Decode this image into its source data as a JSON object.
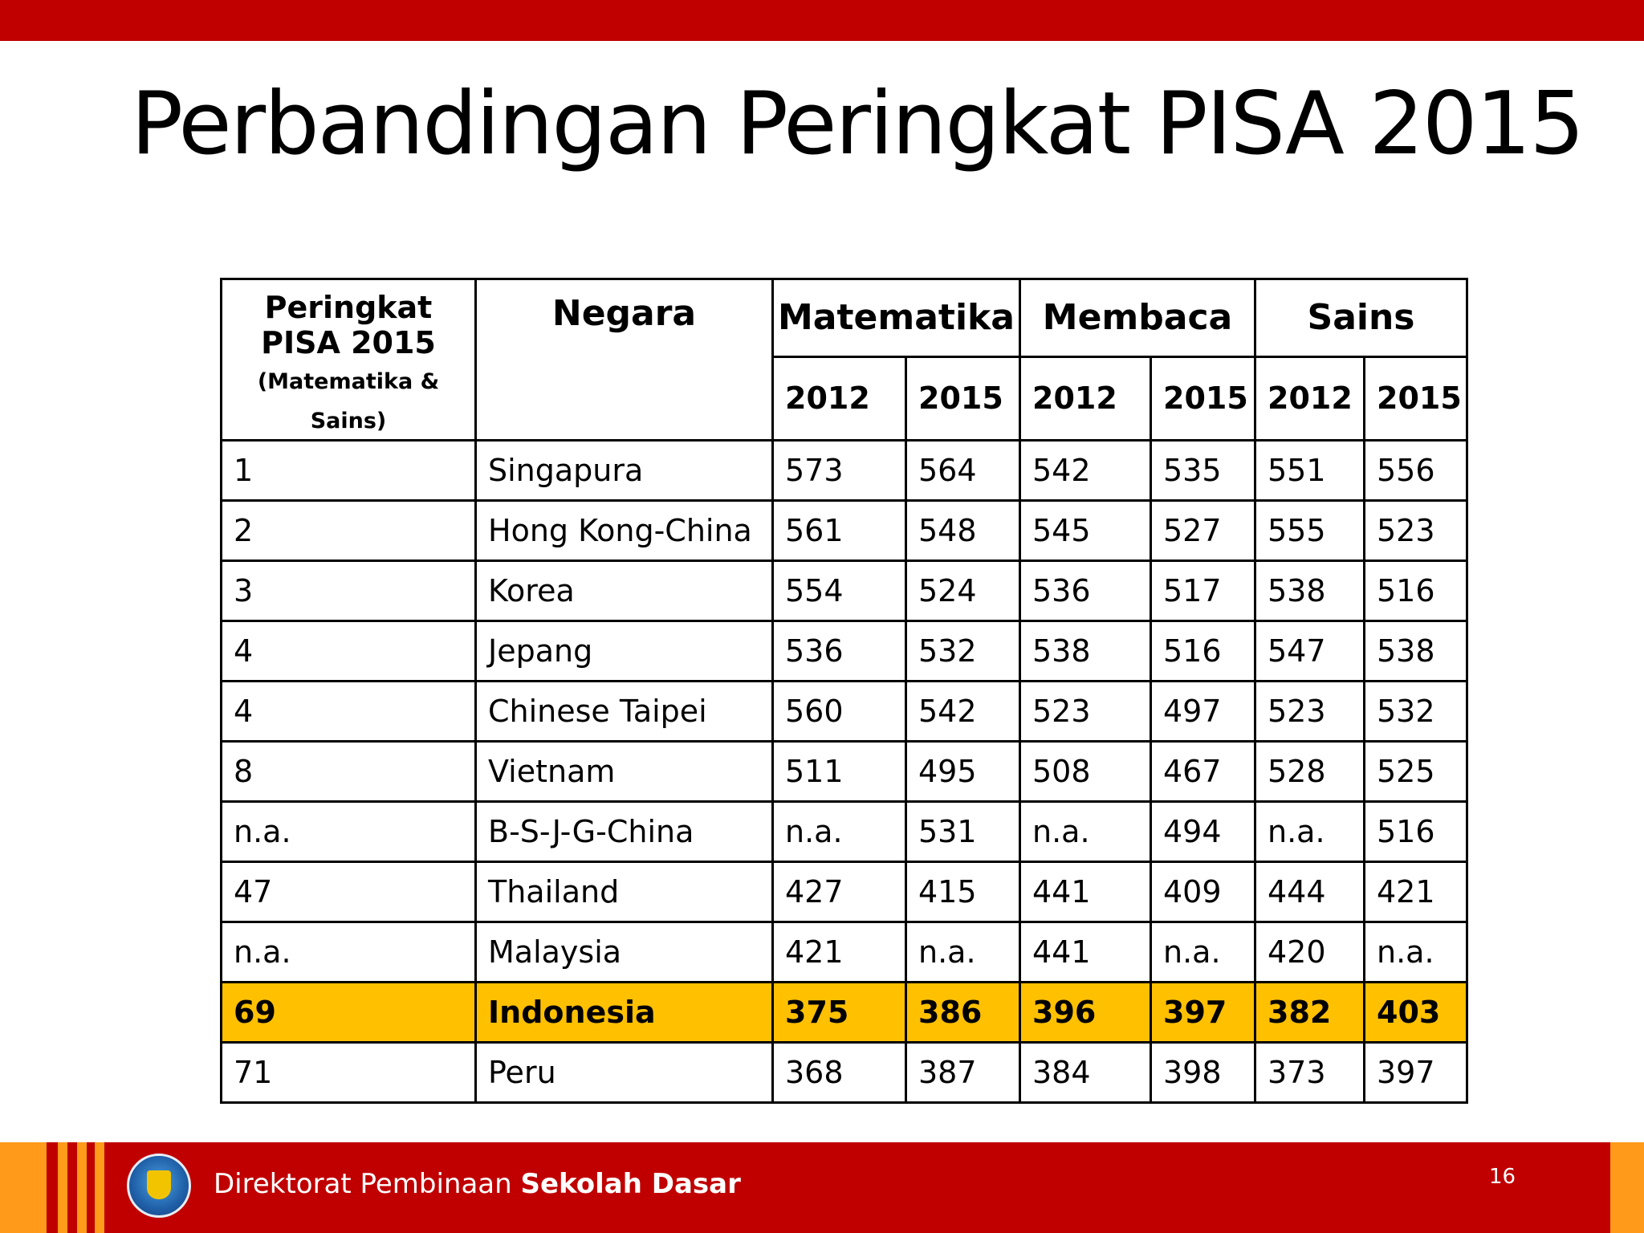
{
  "slide": {
    "title": "Perbandingan Peringkat PISA 2015",
    "page_number": "16"
  },
  "table": {
    "header": {
      "rank_main": "Peringkat PISA 2015",
      "rank_note": "(Matematika & Sains)",
      "country": "Negara",
      "subjects": [
        "Matematika",
        "Membaca",
        "Sains"
      ],
      "years": [
        "2012",
        "2015"
      ]
    },
    "rows": [
      [
        "1",
        "Singapura",
        "573",
        "564",
        "542",
        "535",
        "551",
        "556"
      ],
      [
        "2",
        "Hong Kong-China",
        "561",
        "548",
        "545",
        "527",
        "555",
        "523"
      ],
      [
        "3",
        "Korea",
        "554",
        "524",
        "536",
        "517",
        "538",
        "516"
      ],
      [
        "4",
        "Jepang",
        "536",
        "532",
        "538",
        "516",
        "547",
        "538"
      ],
      [
        "4",
        "Chinese Taipei",
        "560",
        "542",
        "523",
        "497",
        "523",
        "532"
      ],
      [
        "8",
        "Vietnam",
        "511",
        "495",
        "508",
        "467",
        "528",
        "525"
      ],
      [
        "n.a.",
        "B-S-J-G-China",
        "n.a.",
        "531",
        "n.a.",
        "494",
        "n.a.",
        "516"
      ],
      [
        "47",
        "Thailand",
        "427",
        "415",
        "441",
        "409",
        "444",
        "421"
      ],
      [
        "n.a.",
        "Malaysia",
        "421",
        "n.a.",
        "441",
        "n.a.",
        "420",
        "n.a."
      ],
      [
        "69",
        "Indonesia",
        "375",
        "386",
        "396",
        "397",
        "382",
        "403"
      ],
      [
        "71",
        "Peru",
        "368",
        "387",
        "384",
        "398",
        "373",
        "397"
      ]
    ],
    "highlight_row": "Indonesia",
    "highlight_color": "#ffc000"
  },
  "footer": {
    "org_prefix": "Direktorat Pembinaan",
    "org_bold": "Sekolah Dasar",
    "logo_icon": "tut-wuri-handayani-logo-icon"
  },
  "colors": {
    "brand_red": "#c00000",
    "accent_orange": "#ff9a1a"
  }
}
